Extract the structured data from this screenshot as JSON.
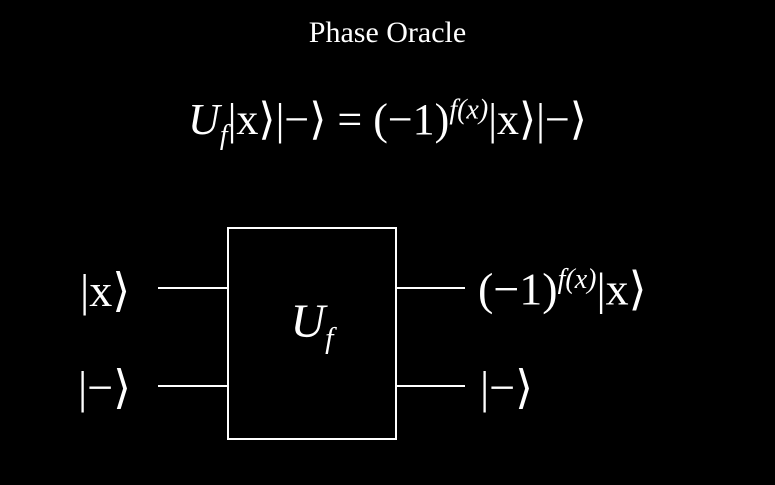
{
  "title": "Phase Oracle",
  "equation": "Uf|x⟩|−⟩ = (−1)^f(x)|x⟩|−⟩",
  "equation_parts": {
    "U": "U",
    "f_sub": "f",
    "lhs_kets": "|x⟩|−⟩",
    "equals": "=",
    "minus_one": "(−1)",
    "exponent": "f(x)",
    "rhs_kets": "|x⟩|−⟩"
  },
  "circuit": {
    "gate": {
      "label_main": "U",
      "label_sub": "f"
    },
    "inputs": [
      {
        "label": "|x⟩"
      },
      {
        "label": "|−⟩"
      }
    ],
    "outputs": [
      {
        "prefix": "(−1)",
        "exponent": "f(x)",
        "ket": "|x⟩"
      },
      {
        "label": "|−⟩"
      }
    ]
  },
  "colors": {
    "background": "#000000",
    "foreground": "#ffffff"
  }
}
